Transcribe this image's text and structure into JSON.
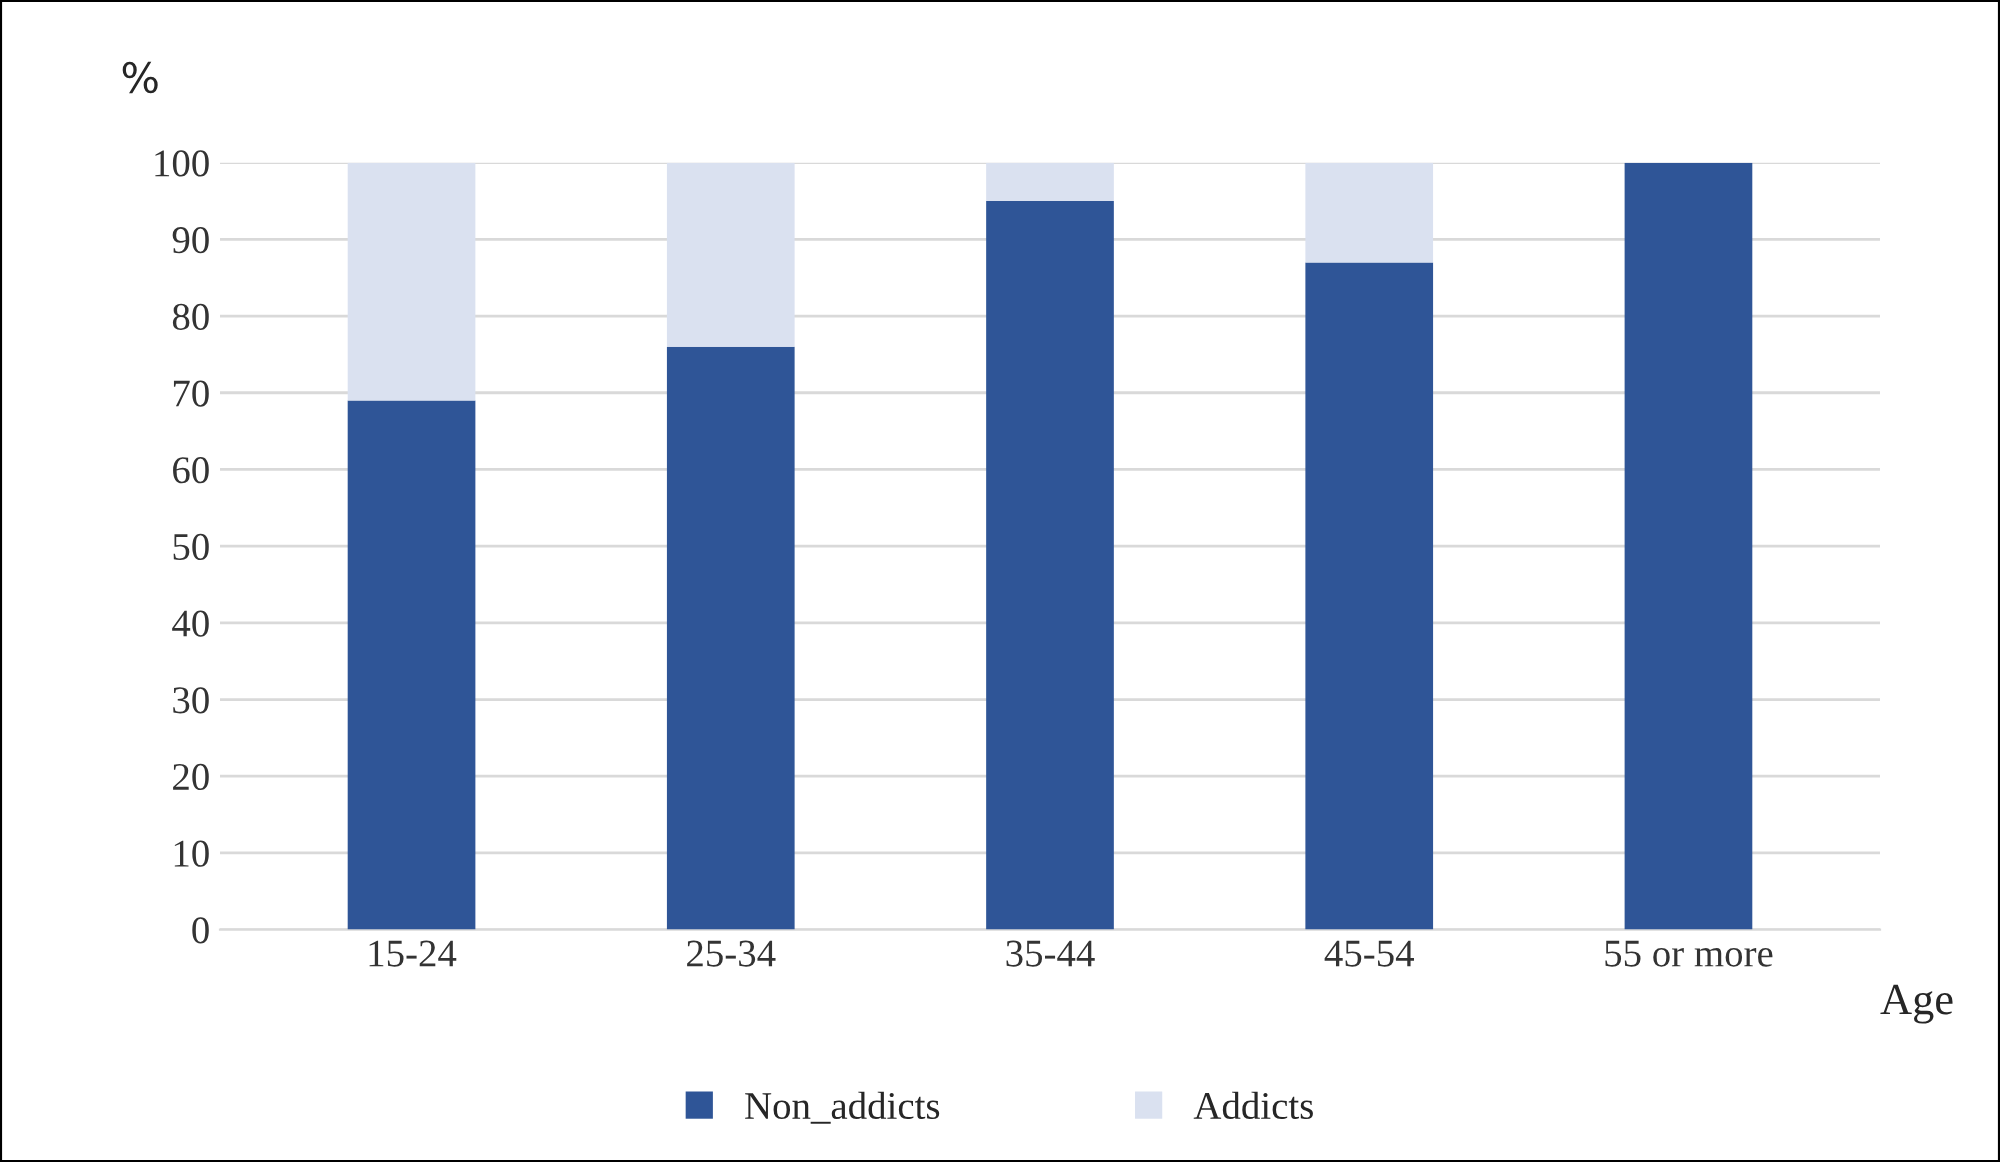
{
  "chart_data": {
    "type": "bar",
    "stacked": true,
    "ylabel": "%",
    "xlabel": "Age",
    "categories": [
      "15-24",
      "25-34",
      "35-44",
      "45-54",
      "55 or more"
    ],
    "series": [
      {
        "name": "Non_addicts",
        "color": "#2f5597",
        "values": [
          69,
          76,
          95,
          87,
          100
        ]
      },
      {
        "name": "Addicts",
        "color": "#dae1f0",
        "values": [
          31,
          24,
          5,
          13,
          0
        ]
      }
    ],
    "ylim": [
      0,
      100
    ],
    "yticks": [
      0,
      10,
      20,
      30,
      40,
      50,
      60,
      70,
      80,
      90,
      100
    ],
    "grid": "y",
    "legend": "bottom"
  }
}
